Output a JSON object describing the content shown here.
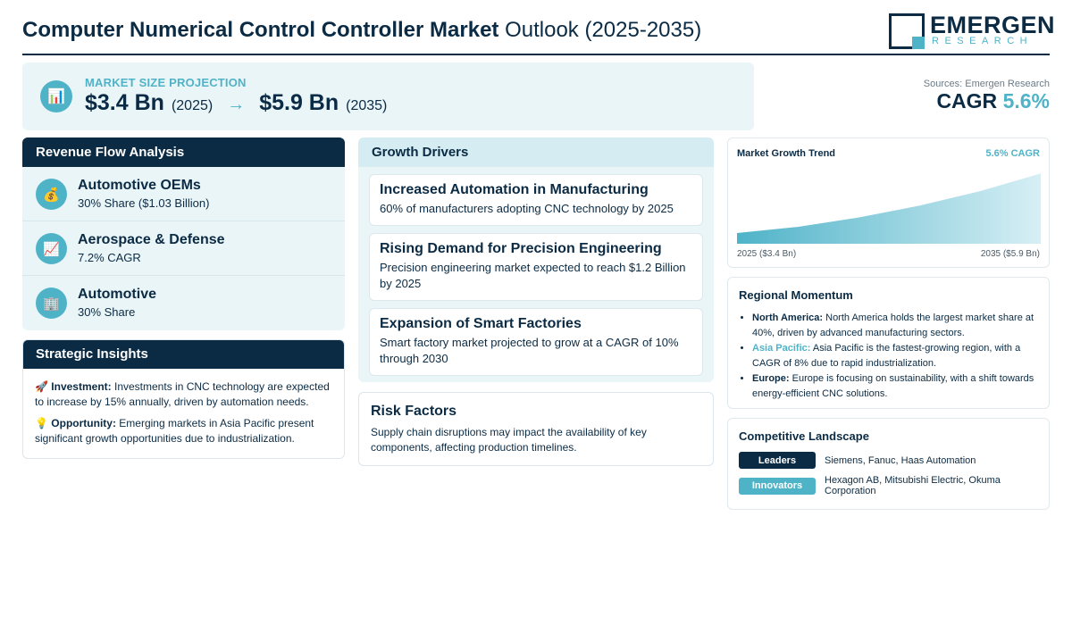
{
  "header": {
    "title_bold": "Computer Numerical Control Controller Market",
    "title_light": "Outlook (2025-2035)",
    "logo_name": "EMERGEN",
    "logo_sub": "RESEARCH"
  },
  "projection": {
    "icon": "bar-chart-icon",
    "label": "MARKET SIZE PROJECTION",
    "start_value": "$3.4 Bn",
    "start_year": "(2025)",
    "arrow": "→",
    "end_value": "$5.9 Bn",
    "end_year": "(2035)"
  },
  "summary": {
    "sources": "Sources: Emergen Research",
    "cagr_label": "CAGR",
    "cagr_value": "5.6%"
  },
  "revenue": {
    "title": "Revenue Flow Analysis",
    "items": [
      {
        "icon": "money-bag-icon",
        "title": "Automotive OEMs",
        "subtitle": "30% Share ($1.03 Billion)"
      },
      {
        "icon": "chart-increasing-icon",
        "title": "Aerospace & Defense",
        "subtitle": "7.2% CAGR"
      },
      {
        "icon": "office-building-icon",
        "title": "Automotive",
        "subtitle": "30% Share"
      }
    ]
  },
  "insights": {
    "title": "Strategic Insights",
    "items": [
      {
        "icon": "rocket-icon",
        "label": "Investment:",
        "text": "Investments in CNC technology are expected to increase by 15% annually, driven by automation needs."
      },
      {
        "icon": "light-bulb-icon",
        "label": "Opportunity:",
        "text": "Emerging markets in Asia Pacific present significant growth opportunities due to industrialization."
      }
    ]
  },
  "drivers": {
    "title": "Growth Drivers",
    "items": [
      {
        "title": "Increased Automation in Manufacturing",
        "text": "60% of manufacturers adopting CNC technology by 2025"
      },
      {
        "title": "Rising Demand for Precision Engineering",
        "text": "Precision engineering market expected to reach $1.2 Billion by 2025"
      },
      {
        "title": "Expansion of Smart Factories",
        "text": "Smart factory market projected to grow at a CAGR of 10% through 2030"
      }
    ]
  },
  "risk": {
    "title": "Risk Factors",
    "text": "Supply chain disruptions may impact the availability of key components, affecting production timelines."
  },
  "trend": {
    "title": "Market Growth Trend",
    "cagr": "5.6% CAGR",
    "start_label": "2025 ($3.4 Bn)",
    "end_label": "2035 ($5.9 Bn)"
  },
  "chart_data": {
    "type": "area",
    "title": "Market Growth Trend",
    "annotation": "5.6% CAGR",
    "x": [
      "2025",
      "2035"
    ],
    "x_labels": [
      "2025 ($3.4 Bn)",
      "2035 ($5.9 Bn)"
    ],
    "values": [
      3.4,
      5.9
    ],
    "unit": "Bn",
    "grid": false,
    "legend": "none",
    "colors": {
      "fill_dark": "#4fb3c8",
      "fill_light": "#d7eff5"
    }
  },
  "regional": {
    "title": "Regional Momentum",
    "items": [
      {
        "region": "North America:",
        "text": "North America holds the largest market share at 40%, driven by advanced manufacturing sectors.",
        "highlight": false
      },
      {
        "region": "Asia Pacific:",
        "text": "Asia Pacific is the fastest-growing region, with a CAGR of 8% due to rapid industrialization.",
        "highlight": true
      },
      {
        "region": "Europe:",
        "text": "Europe is focusing on sustainability, with a shift towards energy-efficient CNC solutions.",
        "highlight": false
      }
    ]
  },
  "competitive": {
    "title": "Competitive Landscape",
    "leaders_label": "Leaders",
    "leaders_text": "Siemens, Fanuc, Haas Automation",
    "innovators_label": "Innovators",
    "innovators_text": "Hexagon AB, Mitsubishi Electric, Okuma Corporation"
  },
  "colors": {
    "navy": "#0b2b44",
    "teal": "#4fb3c8",
    "panel_bg": "#eaf5f8"
  }
}
